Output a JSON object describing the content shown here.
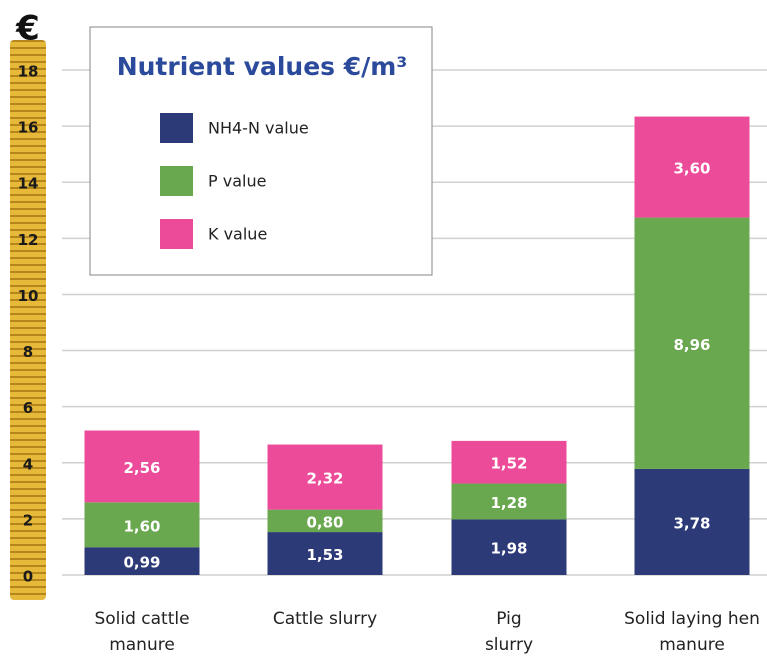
{
  "chart_data": {
    "type": "bar",
    "stacked": true,
    "title": "Nutrient values €/m³",
    "y_label": "€",
    "categories": [
      "Solid cattle manure",
      "Cattle slurry",
      "Pig slurry",
      "Solid laying hen manure"
    ],
    "series": [
      {
        "name": "NH4-N value",
        "color": "#2d3a78",
        "values": [
          0.99,
          1.53,
          1.98,
          3.78
        ],
        "value_labels": [
          "0,99",
          "1,53",
          "1,98",
          "3,78"
        ]
      },
      {
        "name": "P value",
        "color": "#6aa84f",
        "values": [
          1.6,
          0.8,
          1.28,
          8.96
        ],
        "value_labels": [
          "1,60",
          "0,80",
          "1,28",
          "8,96"
        ]
      },
      {
        "name": "K value",
        "color": "#ec4b99",
        "values": [
          2.56,
          2.32,
          1.52,
          3.6
        ],
        "value_labels": [
          "2,56",
          "2,32",
          "1,52",
          "3,60"
        ]
      }
    ],
    "ylim": [
      0,
      18
    ],
    "yticks": [
      0,
      2,
      4,
      6,
      8,
      10,
      12,
      14,
      16,
      18
    ],
    "grid": true
  }
}
